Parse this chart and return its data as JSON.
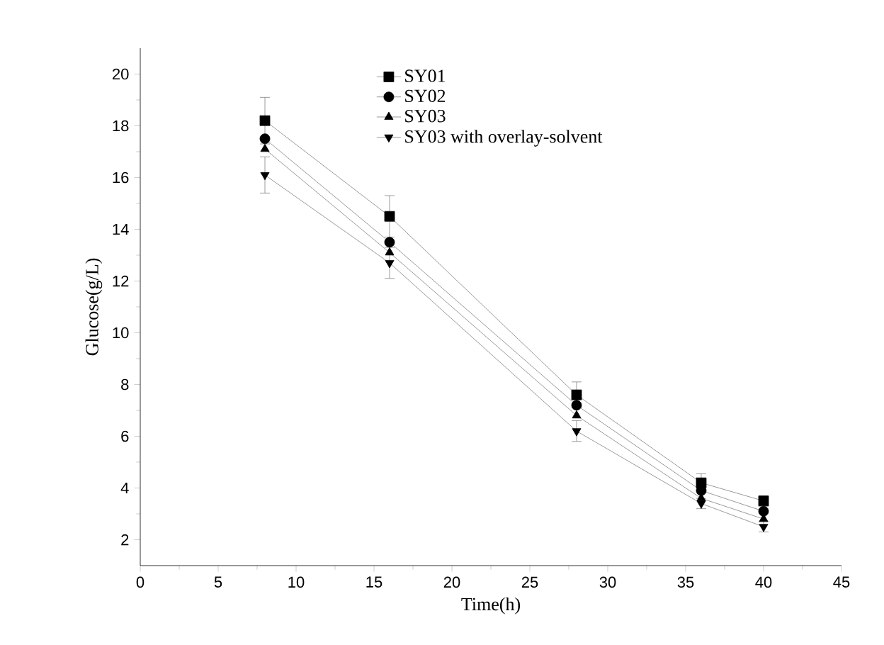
{
  "chart_data": {
    "type": "line",
    "xlabel": "Time(h)",
    "ylabel": "Glucose(g/L)",
    "x": [
      8,
      16,
      28,
      36,
      40
    ],
    "xlim": [
      0,
      45
    ],
    "xticks": [
      0,
      5,
      10,
      15,
      20,
      25,
      30,
      35,
      40,
      45
    ],
    "ylim": [
      1,
      21
    ],
    "yticks": [
      2,
      4,
      6,
      8,
      10,
      12,
      14,
      16,
      18,
      20
    ],
    "legend": "top",
    "grid": false,
    "line_style": "solid",
    "series": [
      {
        "name": "SY01",
        "color": "#000000",
        "marker": "square",
        "values": [
          18.2,
          14.5,
          7.6,
          4.2,
          3.5
        ],
        "errors": [
          0.9,
          0.8,
          0.5,
          0.35,
          0.2
        ]
      },
      {
        "name": "SY02",
        "color": "#000000",
        "marker": "circle",
        "values": [
          17.5,
          13.5,
          7.2,
          3.9,
          3.1
        ]
      },
      {
        "name": "SY03",
        "color": "#000000",
        "marker": "triangle",
        "values": [
          17.1,
          13.1,
          6.8,
          3.6,
          2.8
        ]
      },
      {
        "name": "SY03 with overlay-solvent",
        "color": "#000000",
        "marker": "triangle down",
        "values": [
          16.1,
          12.7,
          6.2,
          3.4,
          2.5
        ],
        "errors": [
          0.7,
          0.6,
          0.4,
          0.2,
          0.2
        ]
      }
    ]
  }
}
